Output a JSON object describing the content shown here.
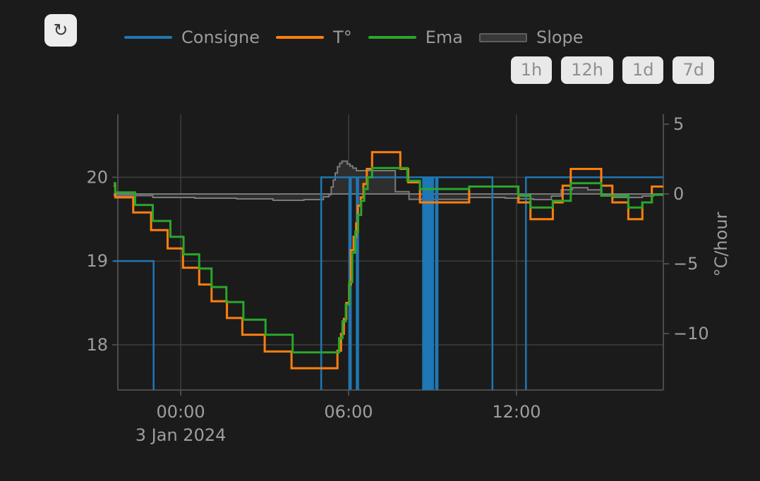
{
  "toolbar": {
    "refresh_icon": "↻"
  },
  "legend": {
    "items": [
      {
        "label": "Consigne",
        "color": "#1f77b4",
        "type": "line"
      },
      {
        "label": "T°",
        "color": "#ff7f0e",
        "type": "line"
      },
      {
        "label": "Ema",
        "color": "#2aa62a",
        "type": "line"
      },
      {
        "label": "Slope",
        "color": "#383838",
        "type": "area"
      }
    ]
  },
  "range_buttons": [
    {
      "label": "1h"
    },
    {
      "label": "12h"
    },
    {
      "label": "1d"
    },
    {
      "label": "7d"
    }
  ],
  "chart_data": {
    "type": "line",
    "step_mode": "hv",
    "grid": true,
    "legend_position": "top",
    "x_axis": {
      "unit": "hours",
      "range": [
        -2.4,
        17.25
      ],
      "ticks": [
        {
          "t": 0,
          "label": "00:00"
        },
        {
          "t": 6,
          "label": "06:00"
        },
        {
          "t": 12,
          "label": "12:00"
        }
      ],
      "date_label": "3 Jan 2024",
      "date_label_tick": 0
    },
    "y_axis_left": {
      "unit": "°C",
      "range": [
        17.46,
        20.753
      ],
      "ticks": [
        {
          "v": 20,
          "label": "20"
        },
        {
          "v": 19,
          "label": "19"
        },
        {
          "v": 18,
          "label": "18"
        }
      ]
    },
    "y_axis_right": {
      "title": "°C/hour",
      "range": [
        -14.04,
        5.71
      ],
      "ticks": [
        {
          "v": 5,
          "label": "5"
        },
        {
          "v": 0,
          "label": "0"
        },
        {
          "v": -5,
          "label": "−5"
        },
        {
          "v": -10,
          "label": "−10"
        }
      ]
    },
    "series": [
      {
        "name": "Slope",
        "axis": "right",
        "style": "area-step",
        "fill": "#2e2e2e",
        "color": "#7a7a7a",
        "width": 2,
        "points": [
          [
            -2.4,
            -0.12
          ],
          [
            -1.0,
            -0.25
          ],
          [
            0.5,
            -0.3
          ],
          [
            2.0,
            -0.35
          ],
          [
            3.3,
            -0.45
          ],
          [
            4.4,
            -0.4
          ],
          [
            5.1,
            -0.2
          ],
          [
            5.3,
            -0.05
          ],
          [
            5.38,
            0.5
          ],
          [
            5.45,
            1.0
          ],
          [
            5.52,
            1.5
          ],
          [
            5.6,
            1.95
          ],
          [
            5.68,
            2.2
          ],
          [
            5.76,
            2.35
          ],
          [
            5.95,
            2.15
          ],
          [
            6.05,
            2.0
          ],
          [
            6.15,
            1.85
          ],
          [
            6.28,
            1.67
          ],
          [
            7.67,
            0.17
          ],
          [
            8.16,
            -0.38
          ],
          [
            10.3,
            -0.25
          ],
          [
            11.6,
            -0.3
          ],
          [
            12.1,
            -0.35
          ],
          [
            12.6,
            -0.4
          ],
          [
            13.25,
            -0.15
          ],
          [
            13.6,
            0.3
          ],
          [
            14.0,
            0.45
          ],
          [
            14.55,
            0.3
          ],
          [
            15.05,
            -0.12
          ],
          [
            15.45,
            -0.25
          ],
          [
            16.5,
            -0.15
          ],
          [
            16.9,
            -0.05
          ]
        ]
      },
      {
        "name": "Consigne",
        "axis": "left",
        "style": "line-step",
        "color": "#1f77b4",
        "width": 2.5,
        "points": [
          [
            -2.4,
            19
          ],
          [
            -0.97,
            17
          ],
          [
            5.02,
            20
          ],
          [
            6.03,
            17
          ],
          [
            6.08,
            20
          ],
          [
            6.29,
            17
          ],
          [
            6.34,
            20
          ],
          [
            8.66,
            17
          ],
          [
            8.71,
            20
          ],
          [
            8.76,
            17
          ],
          [
            8.81,
            20
          ],
          [
            8.87,
            17
          ],
          [
            8.92,
            20
          ],
          [
            8.97,
            17
          ],
          [
            9.02,
            20
          ],
          [
            9.12,
            17
          ],
          [
            9.18,
            20
          ],
          [
            11.14,
            17
          ],
          [
            12.34,
            20
          ]
        ]
      },
      {
        "name": "T°",
        "axis": "left",
        "style": "line-step",
        "color": "#ff7f0e",
        "width": 3,
        "points": [
          [
            -2.4,
            19.9
          ],
          [
            -2.34,
            19.76
          ],
          [
            -1.7,
            19.58
          ],
          [
            -1.06,
            19.37
          ],
          [
            -0.47,
            19.15
          ],
          [
            0.08,
            18.92
          ],
          [
            0.66,
            18.72
          ],
          [
            1.1,
            18.52
          ],
          [
            1.65,
            18.32
          ],
          [
            2.2,
            18.12
          ],
          [
            3.0,
            17.92
          ],
          [
            3.96,
            17.72
          ],
          [
            5.6,
            17.93
          ],
          [
            5.73,
            18.13
          ],
          [
            5.83,
            18.31
          ],
          [
            5.92,
            18.5
          ],
          [
            6.02,
            18.72
          ],
          [
            6.08,
            19.13
          ],
          [
            6.18,
            19.29
          ],
          [
            6.27,
            19.45
          ],
          [
            6.33,
            19.66
          ],
          [
            6.43,
            19.76
          ],
          [
            6.53,
            19.92
          ],
          [
            6.65,
            20.1
          ],
          [
            6.84,
            20.3
          ],
          [
            7.85,
            20.1
          ],
          [
            8.13,
            19.94
          ],
          [
            8.55,
            19.7
          ],
          [
            10.31,
            19.89
          ],
          [
            12.07,
            19.7
          ],
          [
            12.5,
            19.5
          ],
          [
            13.3,
            19.7
          ],
          [
            13.65,
            19.9
          ],
          [
            13.94,
            20.1
          ],
          [
            15.03,
            19.9
          ],
          [
            15.43,
            19.7
          ],
          [
            16.0,
            19.5
          ],
          [
            16.5,
            19.7
          ],
          [
            16.84,
            19.89
          ]
        ]
      },
      {
        "name": "Ema",
        "axis": "left",
        "style": "line-step",
        "color": "#2aa62a",
        "width": 3,
        "points": [
          [
            -2.4,
            19.93
          ],
          [
            -2.34,
            19.82
          ],
          [
            -1.63,
            19.67
          ],
          [
            -1.0,
            19.48
          ],
          [
            -0.37,
            19.29
          ],
          [
            0.1,
            19.08
          ],
          [
            0.66,
            18.91
          ],
          [
            1.1,
            18.69
          ],
          [
            1.63,
            18.51
          ],
          [
            2.24,
            18.3
          ],
          [
            3.03,
            18.12
          ],
          [
            4.0,
            17.91
          ],
          [
            5.66,
            18.08
          ],
          [
            5.78,
            18.28
          ],
          [
            5.9,
            18.48
          ],
          [
            6.03,
            18.75
          ],
          [
            6.13,
            19.1
          ],
          [
            6.24,
            19.35
          ],
          [
            6.34,
            19.55
          ],
          [
            6.45,
            19.72
          ],
          [
            6.56,
            19.86
          ],
          [
            6.68,
            20.0
          ],
          [
            6.84,
            20.11
          ],
          [
            8.1,
            19.96
          ],
          [
            8.55,
            19.86
          ],
          [
            10.31,
            19.89
          ],
          [
            12.07,
            19.78
          ],
          [
            12.5,
            19.64
          ],
          [
            13.3,
            19.72
          ],
          [
            13.94,
            19.93
          ],
          [
            15.03,
            19.78
          ],
          [
            16.0,
            19.64
          ],
          [
            16.5,
            19.7
          ],
          [
            16.84,
            19.79
          ]
        ]
      }
    ],
    "colors": {
      "background": "#1b1b1b",
      "gridline": "#3e3e3e",
      "axis_line": "#4b4b4b",
      "tick_label": "#9e9e9e"
    }
  }
}
